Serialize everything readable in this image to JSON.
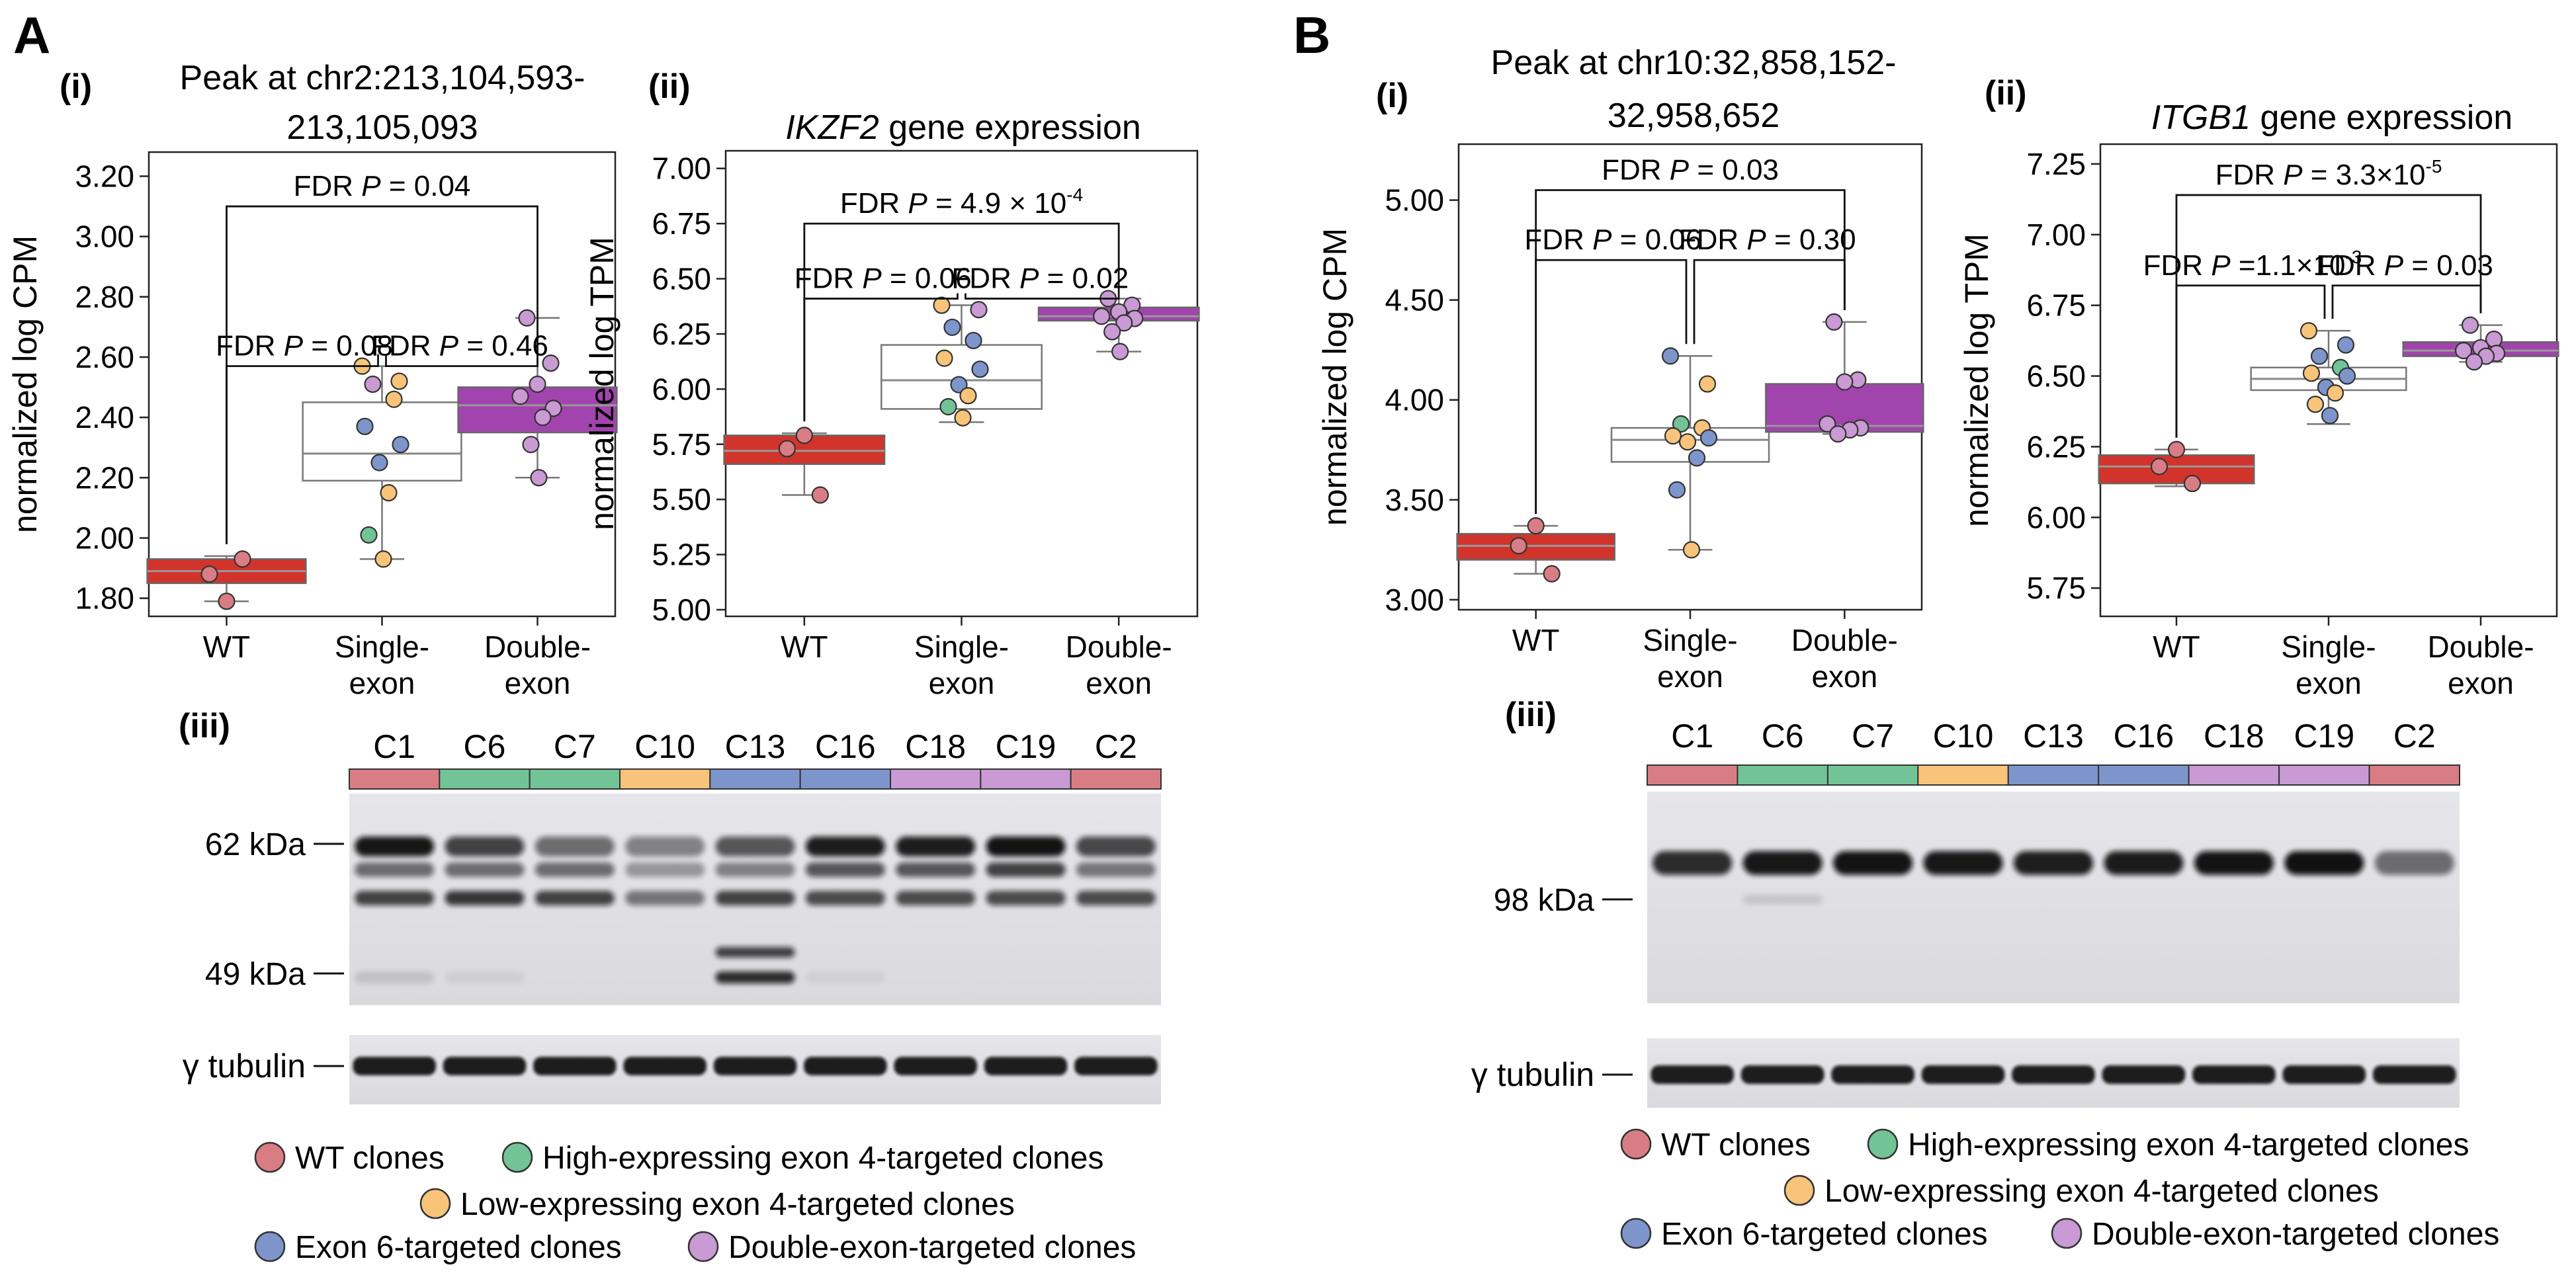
{
  "colors": {
    "wt": "#D97D85",
    "high_ex4": "#72C496",
    "low_ex4": "#F8C47A",
    "ex6": "#7E95CC",
    "double": "#C99AD3",
    "box_wt": "#D2342C",
    "box_single": "#FFFFFF",
    "box_double": "#A244AE"
  },
  "panelA": {
    "letter": "A",
    "sub_i": "(i)",
    "sub_ii": "(ii)",
    "sub_iii": "(iii)",
    "western": {
      "lanes": [
        "C1",
        "C6",
        "C7",
        "C10",
        "C13",
        "C16",
        "C18",
        "C19",
        "C2"
      ],
      "lane_groups": [
        "wt",
        "high_ex4",
        "high_ex4",
        "low_ex4",
        "ex6",
        "ex6",
        "double",
        "double",
        "wt"
      ],
      "markers": [
        "62 kDa",
        "49 kDa"
      ],
      "loading": "γ tubulin"
    },
    "legend": {
      "wt": "WT clones",
      "high_ex4": "High-expressing exon 4-targeted clones",
      "low_ex4": "Low-expressing exon 4-targeted clones",
      "ex6": "Exon 6-targeted clones",
      "double": "Double-exon-targeted clones"
    }
  },
  "panelB": {
    "letter": "B",
    "sub_i": "(i)",
    "sub_ii": "(ii)",
    "sub_iii": "(iii)",
    "western": {
      "lanes": [
        "C1",
        "C6",
        "C7",
        "C10",
        "C13",
        "C16",
        "C18",
        "C19",
        "C2"
      ],
      "lane_groups": [
        "wt",
        "high_ex4",
        "high_ex4",
        "low_ex4",
        "ex6",
        "ex6",
        "double",
        "double",
        "wt"
      ],
      "markers": [
        "98 kDa"
      ],
      "loading": "γ tubulin"
    },
    "legend": {
      "wt": "WT clones",
      "high_ex4": "High-expressing exon 4-targeted clones",
      "low_ex4": "Low-expressing exon 4-targeted clones",
      "ex6": "Exon 6-targeted clones",
      "double": "Double-exon-targeted clones"
    }
  },
  "chart_data": [
    {
      "id": "Ai",
      "type": "box",
      "title_lines": [
        "Peak at chr2:213,104,593-",
        "213,105,093"
      ],
      "title_italic": "",
      "title_rest": "",
      "ylabel": "normalized log CPM",
      "ylim": [
        1.74,
        3.28
      ],
      "yticks": [
        "1.80",
        "2.00",
        "2.20",
        "2.40",
        "2.60",
        "2.80",
        "3.00",
        "3.20"
      ],
      "categories": [
        [
          "WT"
        ],
        [
          "Single-",
          "exon"
        ],
        [
          "Double-",
          "exon"
        ]
      ],
      "boxes": [
        {
          "group": "wt",
          "q1": 1.85,
          "median": 1.89,
          "q3": 1.93,
          "wlo": 1.79,
          "whi": 1.94
        },
        {
          "group": "single",
          "q1": 2.19,
          "median": 2.28,
          "q3": 2.45,
          "wlo": 1.93,
          "whi": 2.57
        },
        {
          "group": "double",
          "q1": 2.35,
          "median": 2.44,
          "q3": 2.5,
          "wlo": 2.2,
          "whi": 2.73
        }
      ],
      "points": [
        [
          [
            "wt",
            1.79
          ],
          [
            "wt",
            1.88
          ],
          [
            "wt",
            1.93
          ]
        ],
        [
          [
            "low_ex4",
            2.57
          ],
          [
            "low_ex4",
            2.52
          ],
          [
            "double",
            2.51
          ],
          [
            "low_ex4",
            2.46
          ],
          [
            "ex6",
            2.37
          ],
          [
            "ex6",
            2.31
          ],
          [
            "ex6",
            2.25
          ],
          [
            "low_ex4",
            2.15
          ],
          [
            "high_ex4",
            2.01
          ],
          [
            "low_ex4",
            1.93
          ]
        ],
        [
          [
            "double",
            2.73
          ],
          [
            "double",
            2.58
          ],
          [
            "double",
            2.51
          ],
          [
            "double",
            2.47
          ],
          [
            "double",
            2.43
          ],
          [
            "double",
            2.4
          ],
          [
            "double",
            2.31
          ],
          [
            "double",
            2.2
          ]
        ]
      ],
      "brackets": [
        {
          "from": 1,
          "to": 2,
          "level": 2.57,
          "parts": [
            "FDR ",
            "P",
            " = 0.08"
          ],
          "super": ""
        },
        {
          "from": 2,
          "to": 3,
          "level": 2.57,
          "parts": [
            "FDR ",
            "P",
            " = 0.46"
          ],
          "super": ""
        },
        {
          "from": 1,
          "to": 3,
          "level": 3.1,
          "parts": [
            "FDR ",
            "P",
            " = 0.04"
          ],
          "super": ""
        }
      ]
    },
    {
      "id": "Aii",
      "type": "box",
      "title_lines": [],
      "title_italic": "IKZF2",
      "title_rest": " gene expression",
      "ylabel": "normalized log TPM",
      "ylim": [
        4.97,
        7.08
      ],
      "yticks": [
        "5.00",
        "5.25",
        "5.50",
        "5.75",
        "6.00",
        "6.25",
        "6.50",
        "6.75",
        "7.00"
      ],
      "categories": [
        [
          "WT"
        ],
        [
          "Single-",
          "exon"
        ],
        [
          "Double-",
          "exon"
        ]
      ],
      "boxes": [
        {
          "group": "wt",
          "q1": 5.66,
          "median": 5.72,
          "q3": 5.79,
          "wlo": 5.52,
          "whi": 5.8
        },
        {
          "group": "single",
          "q1": 5.91,
          "median": 6.04,
          "q3": 6.2,
          "wlo": 5.85,
          "whi": 6.38
        },
        {
          "group": "double",
          "q1": 6.31,
          "median": 6.33,
          "q3": 6.37,
          "wlo": 6.17,
          "whi": 6.41
        }
      ],
      "points": [
        [
          [
            "wt",
            5.79
          ],
          [
            "wt",
            5.73
          ],
          [
            "wt",
            5.52
          ]
        ],
        [
          [
            "low_ex4",
            6.38
          ],
          [
            "double",
            6.36
          ],
          [
            "ex6",
            6.28
          ],
          [
            "ex6",
            6.22
          ],
          [
            "low_ex4",
            6.14
          ],
          [
            "ex6",
            6.09
          ],
          [
            "ex6",
            6.02
          ],
          [
            "low_ex4",
            5.97
          ],
          [
            "high_ex4",
            5.92
          ],
          [
            "low_ex4",
            5.87
          ]
        ],
        [
          [
            "double",
            6.41
          ],
          [
            "double",
            6.38
          ],
          [
            "double",
            6.35
          ],
          [
            "double",
            6.33
          ],
          [
            "double",
            6.32
          ],
          [
            "double",
            6.3
          ],
          [
            "double",
            6.26
          ],
          [
            "double",
            6.17
          ]
        ]
      ],
      "brackets": [
        {
          "from": 1,
          "to": 2,
          "level": 6.41,
          "parts": [
            "FDR ",
            "P",
            " = 0.06"
          ],
          "super": ""
        },
        {
          "from": 2,
          "to": 3,
          "level": 6.41,
          "parts": [
            "FDR ",
            "P",
            " = 0.02"
          ],
          "super": ""
        },
        {
          "from": 1,
          "to": 3,
          "level": 6.75,
          "parts": [
            "FDR ",
            "P",
            " = 4.9 × 10"
          ],
          "super": "-4"
        }
      ]
    },
    {
      "id": "Bi",
      "type": "box",
      "title_lines": [
        "Peak at chr10:32,858,152-",
        "32,958,652"
      ],
      "title_italic": "",
      "title_rest": "",
      "ylabel": "normalized log CPM",
      "ylim": [
        2.95,
        5.28
      ],
      "yticks": [
        "3.00",
        "3.50",
        "4.00",
        "4.50",
        "5.00"
      ],
      "categories": [
        [
          "WT"
        ],
        [
          "Single-",
          "exon"
        ],
        [
          "Double-",
          "exon"
        ]
      ],
      "boxes": [
        {
          "group": "wt",
          "q1": 3.2,
          "median": 3.27,
          "q3": 3.33,
          "wlo": 3.13,
          "whi": 3.37
        },
        {
          "group": "single",
          "q1": 3.69,
          "median": 3.8,
          "q3": 3.86,
          "wlo": 3.25,
          "whi": 4.22
        },
        {
          "group": "double",
          "q1": 3.84,
          "median": 3.87,
          "q3": 4.08,
          "wlo": 3.83,
          "whi": 4.39
        }
      ],
      "points": [
        [
          [
            "wt",
            3.37
          ],
          [
            "wt",
            3.27
          ],
          [
            "wt",
            3.13
          ]
        ],
        [
          [
            "ex6",
            4.22
          ],
          [
            "low_ex4",
            4.08
          ],
          [
            "high_ex4",
            3.88
          ],
          [
            "low_ex4",
            3.86
          ],
          [
            "low_ex4",
            3.82
          ],
          [
            "ex6",
            3.81
          ],
          [
            "low_ex4",
            3.79
          ],
          [
            "ex6",
            3.71
          ],
          [
            "ex6",
            3.55
          ],
          [
            "low_ex4",
            3.25
          ]
        ],
        [
          [
            "double",
            4.39
          ],
          [
            "double",
            4.1
          ],
          [
            "double",
            4.09
          ],
          [
            "double",
            3.88
          ],
          [
            "double",
            3.86
          ],
          [
            "double",
            3.85
          ],
          [
            "double",
            3.83
          ]
        ]
      ],
      "brackets": [
        {
          "from": 1,
          "to": 2,
          "level": 4.7,
          "parts": [
            "FDR ",
            "P",
            " = 0.06"
          ],
          "super": ""
        },
        {
          "from": 2,
          "to": 3,
          "level": 4.7,
          "parts": [
            "FDR ",
            "P",
            " = 0.30"
          ],
          "super": ""
        },
        {
          "from": 1,
          "to": 3,
          "level": 5.05,
          "parts": [
            "FDR ",
            "P",
            " = 0.03"
          ],
          "super": ""
        }
      ]
    },
    {
      "id": "Bii",
      "type": "box",
      "title_lines": [],
      "title_italic": "ITGB1",
      "title_rest": " gene expression",
      "ylabel": "normalized log TPM",
      "ylim": [
        5.65,
        7.32
      ],
      "yticks": [
        "5.75",
        "6.00",
        "6.25",
        "6.50",
        "6.75",
        "7.00",
        "7.25"
      ],
      "categories": [
        [
          "WT"
        ],
        [
          "Single-",
          "exon"
        ],
        [
          "Double-",
          "exon"
        ]
      ],
      "boxes": [
        {
          "group": "wt",
          "q1": 6.12,
          "median": 6.18,
          "q3": 6.22,
          "wlo": 6.11,
          "whi": 6.24
        },
        {
          "group": "single",
          "q1": 6.45,
          "median": 6.49,
          "q3": 6.53,
          "wlo": 6.33,
          "whi": 6.66
        },
        {
          "group": "double",
          "q1": 6.57,
          "median": 6.59,
          "q3": 6.62,
          "wlo": 6.55,
          "whi": 6.68
        }
      ],
      "points": [
        [
          [
            "wt",
            6.24
          ],
          [
            "wt",
            6.18
          ],
          [
            "wt",
            6.12
          ]
        ],
        [
          [
            "low_ex4",
            6.66
          ],
          [
            "ex6",
            6.61
          ],
          [
            "ex6",
            6.57
          ],
          [
            "high_ex4",
            6.53
          ],
          [
            "low_ex4",
            6.51
          ],
          [
            "ex6",
            6.5
          ],
          [
            "ex6",
            6.46
          ],
          [
            "low_ex4",
            6.44
          ],
          [
            "low_ex4",
            6.4
          ],
          [
            "ex6",
            6.36
          ]
        ],
        [
          [
            "double",
            6.68
          ],
          [
            "double",
            6.63
          ],
          [
            "double",
            6.6
          ],
          [
            "double",
            6.59
          ],
          [
            "double",
            6.58
          ],
          [
            "double",
            6.57
          ],
          [
            "double",
            6.55
          ]
        ]
      ],
      "brackets": [
        {
          "from": 1,
          "to": 2,
          "level": 6.82,
          "parts": [
            "FDR ",
            "P",
            " =1.1×10"
          ],
          "super": "-3"
        },
        {
          "from": 2,
          "to": 3,
          "level": 6.82,
          "parts": [
            "FDR ",
            "P",
            " = 0.03"
          ],
          "super": ""
        },
        {
          "from": 1,
          "to": 3,
          "level": 7.14,
          "parts": [
            "FDR ",
            "P",
            " = 3.3×10"
          ],
          "super": "-5"
        }
      ]
    }
  ]
}
